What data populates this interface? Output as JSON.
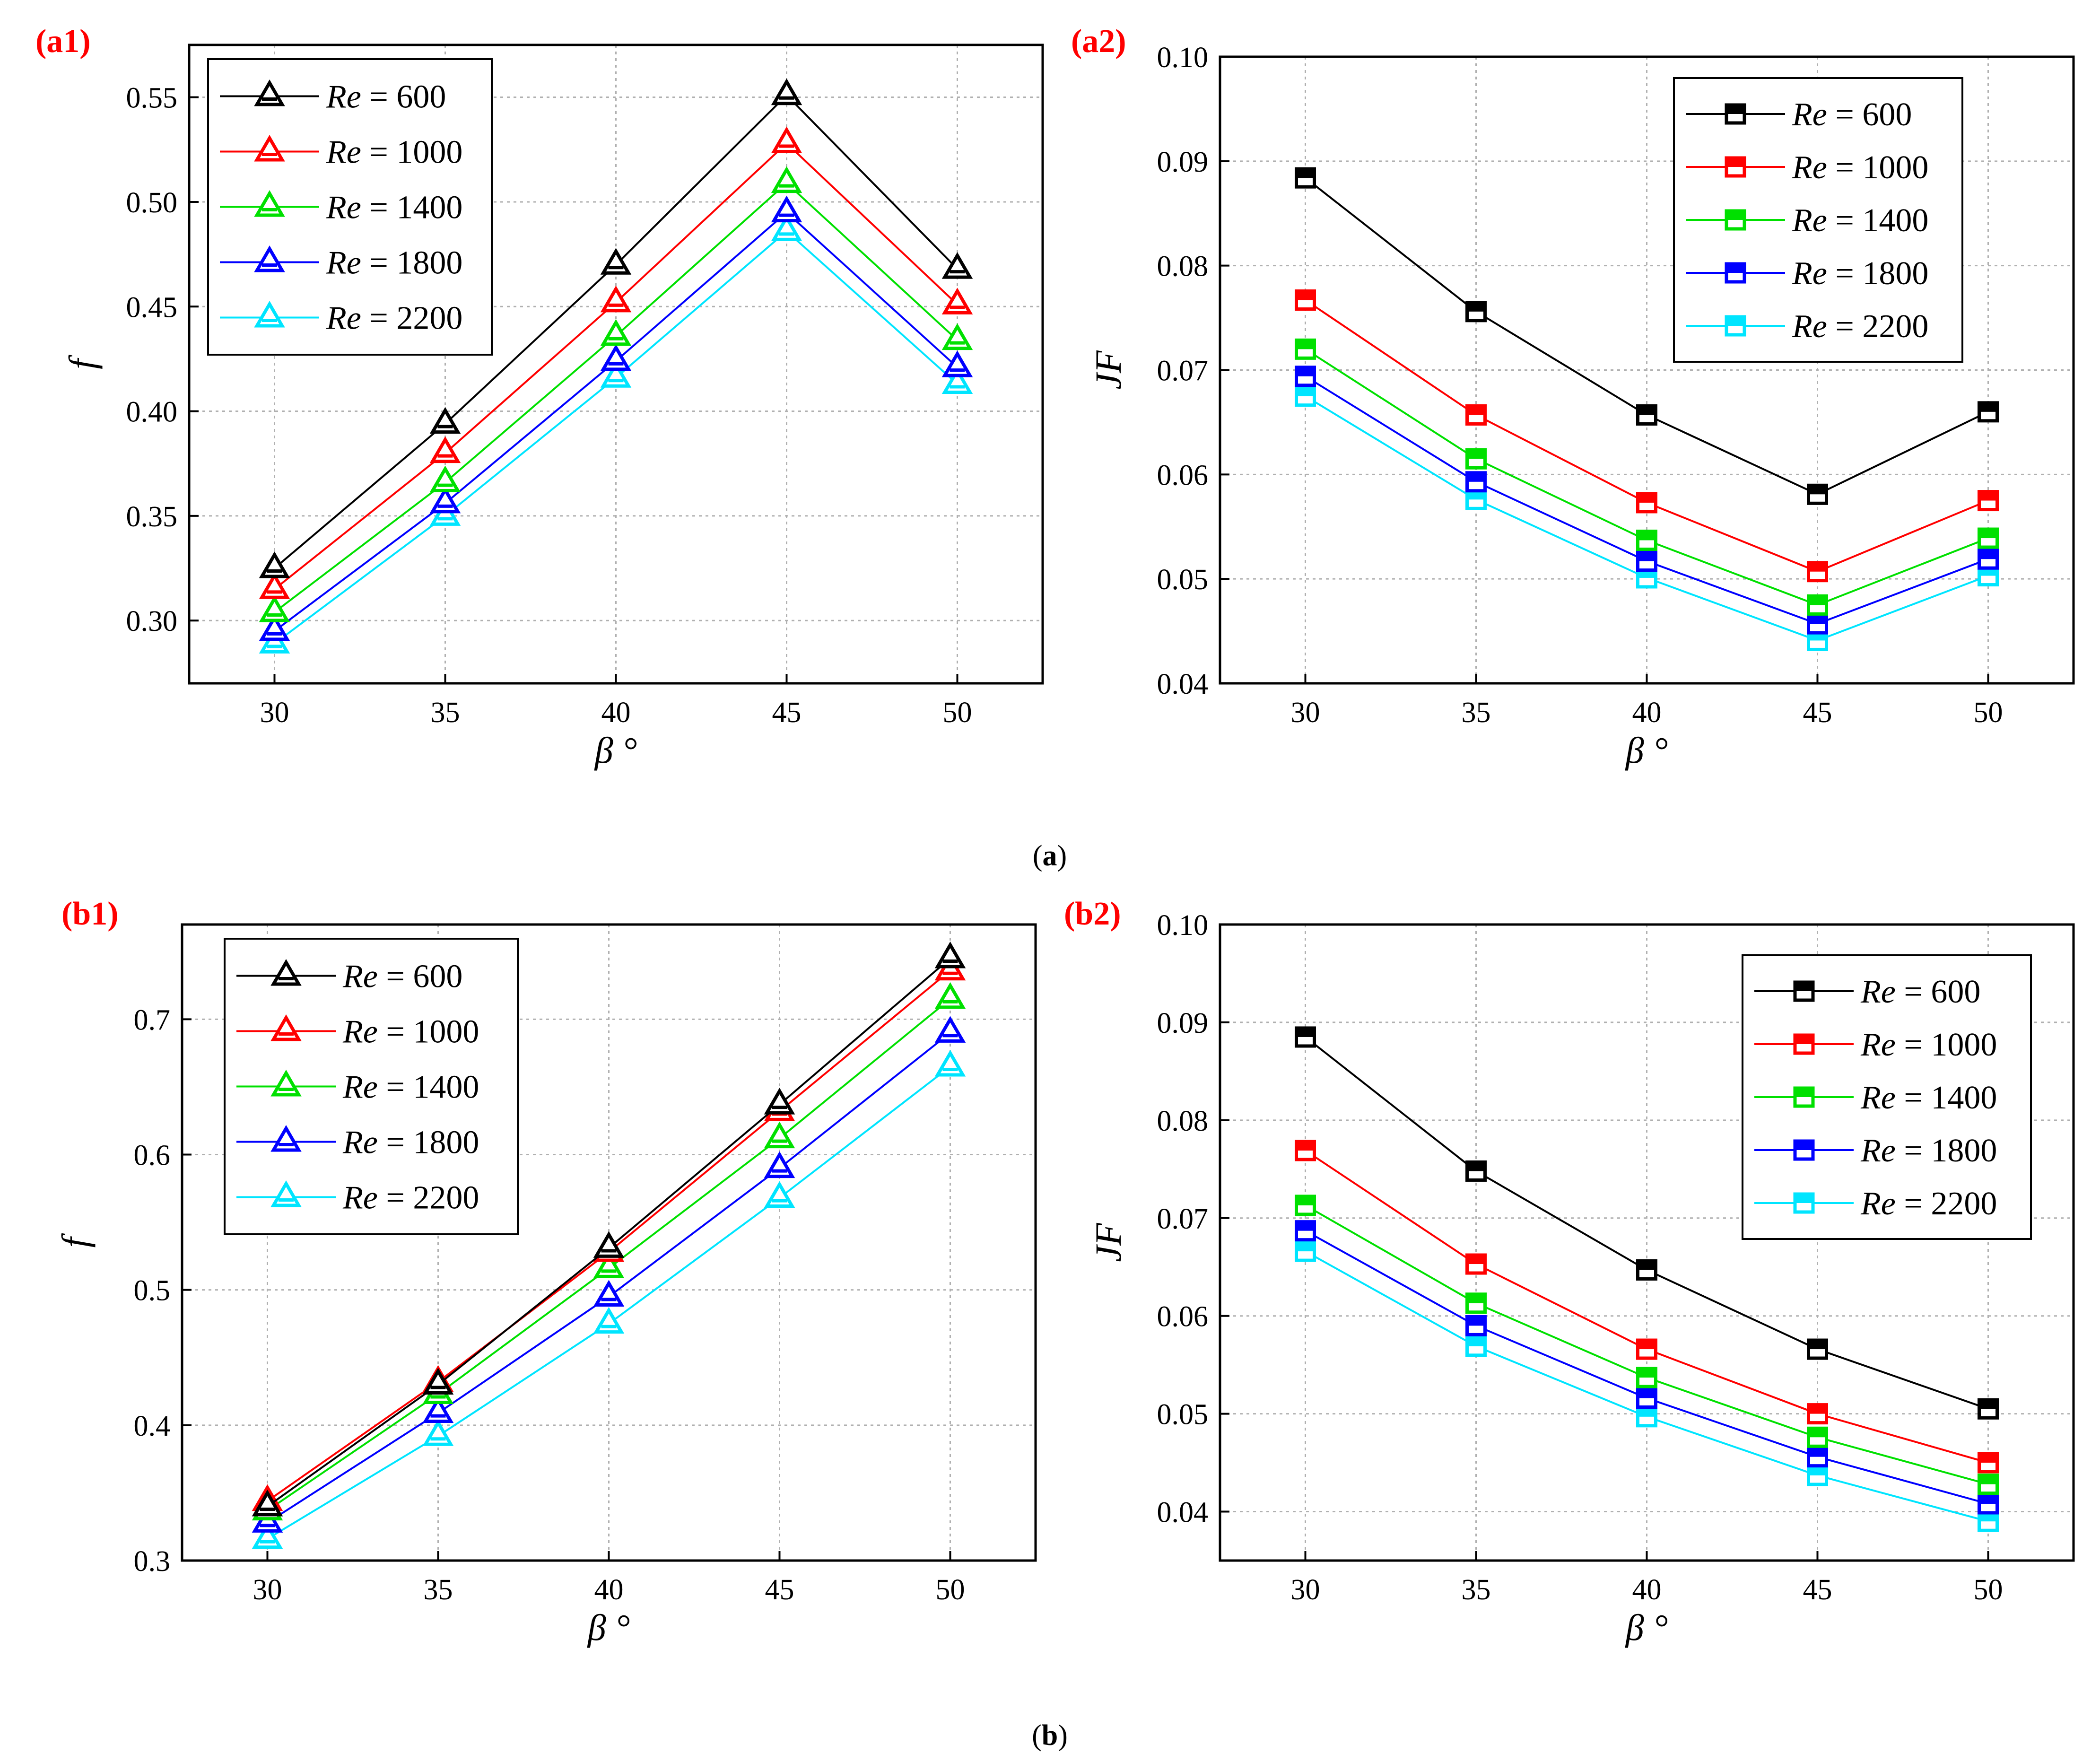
{
  "captions": {
    "a": "a",
    "b": "b"
  },
  "colors": {
    "series": [
      "#000000",
      "#ff0000",
      "#00e000",
      "#0000ff",
      "#00e5ff"
    ],
    "panel_label": "#ff0000",
    "grid": "#b0b0b0"
  },
  "chart_data": [
    {
      "id": "a1",
      "panel_label": "(a1)",
      "type": "line",
      "marker": "triangle",
      "xlabel": "β °",
      "ylabel": "f",
      "x": [
        30,
        35,
        40,
        45,
        50
      ],
      "xlim": [
        27.5,
        52.5
      ],
      "ylim": [
        0.27,
        0.575
      ],
      "yticks": [
        "0.30",
        "0.35",
        "0.40",
        "0.45",
        "0.50",
        "0.55"
      ],
      "legend_position": "top-left",
      "series": [
        {
          "name": "600",
          "label_prefix": "Re",
          "values": [
            0.325,
            0.394,
            0.47,
            0.551,
            0.468
          ]
        },
        {
          "name": "1000",
          "label_prefix": "Re",
          "values": [
            0.315,
            0.38,
            0.452,
            0.528,
            0.451
          ]
        },
        {
          "name": "1400",
          "label_prefix": "Re",
          "values": [
            0.304,
            0.366,
            0.436,
            0.509,
            0.434
          ]
        },
        {
          "name": "1800",
          "label_prefix": "Re",
          "values": [
            0.295,
            0.356,
            0.424,
            0.495,
            0.421
          ]
        },
        {
          "name": "2200",
          "label_prefix": "Re",
          "values": [
            0.289,
            0.35,
            0.416,
            0.486,
            0.413
          ]
        }
      ]
    },
    {
      "id": "a2",
      "panel_label": "(a2)",
      "type": "line",
      "marker": "square",
      "xlabel": "β °",
      "ylabel": "JF",
      "x": [
        30,
        35,
        40,
        45,
        50
      ],
      "xlim": [
        27.5,
        52.5
      ],
      "ylim": [
        0.04,
        0.1
      ],
      "yticks": [
        "0.04",
        "0.05",
        "0.06",
        "0.07",
        "0.08",
        "0.09",
        "0.10"
      ],
      "legend_position": "top-right",
      "series": [
        {
          "name": "600",
          "label_prefix": "Re",
          "values": [
            0.0884,
            0.0756,
            0.0657,
            0.0581,
            0.066
          ]
        },
        {
          "name": "1000",
          "label_prefix": "Re",
          "values": [
            0.0767,
            0.0657,
            0.0573,
            0.0507,
            0.0575
          ]
        },
        {
          "name": "1400",
          "label_prefix": "Re",
          "values": [
            0.072,
            0.0615,
            0.0537,
            0.0475,
            0.0539
          ]
        },
        {
          "name": "1800",
          "label_prefix": "Re",
          "values": [
            0.0694,
            0.0593,
            0.0517,
            0.0457,
            0.0519
          ]
        },
        {
          "name": "2200",
          "label_prefix": "Re",
          "values": [
            0.0675,
            0.0576,
            0.0501,
            0.0441,
            0.0503
          ]
        }
      ]
    },
    {
      "id": "b1",
      "panel_label": "(b1)",
      "type": "line",
      "marker": "triangle",
      "xlabel": "β °",
      "ylabel": "f",
      "x": [
        30,
        35,
        40,
        45,
        50
      ],
      "xlim": [
        27.5,
        52.5
      ],
      "ylim": [
        0.3,
        0.77
      ],
      "yticks": [
        "0.3",
        "0.4",
        "0.5",
        "0.6",
        "0.7"
      ],
      "legend_position": "top-left",
      "series": [
        {
          "name": "600",
          "label_prefix": "Re",
          "values": [
            0.34,
            0.43,
            0.531,
            0.637,
            0.745
          ]
        },
        {
          "name": "1000",
          "label_prefix": "Re",
          "values": [
            0.344,
            0.432,
            0.528,
            0.632,
            0.736
          ]
        },
        {
          "name": "1400",
          "label_prefix": "Re",
          "values": [
            0.337,
            0.423,
            0.516,
            0.612,
            0.715
          ]
        },
        {
          "name": "1800",
          "label_prefix": "Re",
          "values": [
            0.328,
            0.409,
            0.495,
            0.59,
            0.69
          ]
        },
        {
          "name": "2200",
          "label_prefix": "Re",
          "values": [
            0.316,
            0.392,
            0.475,
            0.568,
            0.665
          ]
        }
      ]
    },
    {
      "id": "b2",
      "panel_label": "(b2)",
      "type": "line",
      "marker": "square",
      "xlabel": "β °",
      "ylabel": "JF",
      "x": [
        30,
        35,
        40,
        45,
        50
      ],
      "xlim": [
        27.5,
        52.5
      ],
      "ylim": [
        0.035,
        0.1
      ],
      "yticks": [
        "0.04",
        "0.05",
        "0.06",
        "0.07",
        "0.08",
        "0.09",
        "0.10"
      ],
      "legend_position": "top-right",
      "series": [
        {
          "name": "600",
          "label_prefix": "Re",
          "values": [
            0.0885,
            0.0748,
            0.0647,
            0.0566,
            0.0505
          ]
        },
        {
          "name": "1000",
          "label_prefix": "Re",
          "values": [
            0.0769,
            0.0653,
            0.0566,
            0.05,
            0.045
          ]
        },
        {
          "name": "1400",
          "label_prefix": "Re",
          "values": [
            0.0713,
            0.0613,
            0.0537,
            0.0476,
            0.0428
          ]
        },
        {
          "name": "1800",
          "label_prefix": "Re",
          "values": [
            0.0687,
            0.059,
            0.0516,
            0.0456,
            0.0408
          ]
        },
        {
          "name": "2200",
          "label_prefix": "Re",
          "values": [
            0.0666,
            0.0569,
            0.0497,
            0.0437,
            0.039
          ]
        }
      ]
    }
  ]
}
